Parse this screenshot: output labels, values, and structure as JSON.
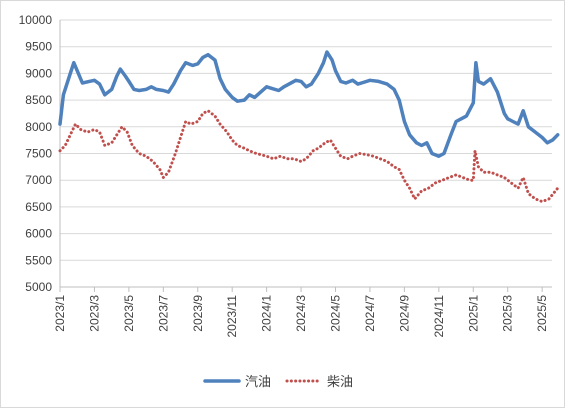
{
  "chart_data": {
    "type": "line",
    "title": "",
    "xlabel": "",
    "ylabel": "",
    "ylim": [
      5000,
      10000
    ],
    "y_ticks": [
      5000,
      5500,
      6000,
      6500,
      7000,
      7500,
      8000,
      8500,
      9000,
      9500,
      10000
    ],
    "x_ticks": [
      "2023/1",
      "2023/3",
      "2023/5",
      "2023/7",
      "2023/9",
      "2023/11",
      "2024/1",
      "2024/3",
      "2024/5",
      "2024/7",
      "2024/9",
      "2024/11",
      "2025/1",
      "2025/3",
      "2025/5"
    ],
    "grid": "horizontal",
    "legend_position": "bottom",
    "series": [
      {
        "name": "汽油",
        "color": "#4f81bd",
        "style": "solid",
        "points": [
          [
            "2023/1",
            8050
          ],
          [
            "2023/1.2",
            8600
          ],
          [
            "2023/1.5",
            8900
          ],
          [
            "2023/1.8",
            9200
          ],
          [
            "2023/2",
            9050
          ],
          [
            "2023/2.3",
            8820
          ],
          [
            "2023/2.7",
            8850
          ],
          [
            "2023/3",
            8870
          ],
          [
            "2023/3.3",
            8800
          ],
          [
            "2023/3.6",
            8600
          ],
          [
            "2023/4",
            8700
          ],
          [
            "2023/4.3",
            8950
          ],
          [
            "2023/4.5",
            9080
          ],
          [
            "2023/4.8",
            8950
          ],
          [
            "2023/5",
            8850
          ],
          [
            "2023/5.3",
            8700
          ],
          [
            "2023/5.6",
            8680
          ],
          [
            "2023/6",
            8700
          ],
          [
            "2023/6.3",
            8750
          ],
          [
            "2023/6.6",
            8700
          ],
          [
            "2023/7",
            8680
          ],
          [
            "2023/7.3",
            8650
          ],
          [
            "2023/7.6",
            8800
          ],
          [
            "2023/8",
            9050
          ],
          [
            "2023/8.3",
            9200
          ],
          [
            "2023/8.7",
            9150
          ],
          [
            "2023/9",
            9180
          ],
          [
            "2023/9.3",
            9300
          ],
          [
            "2023/9.6",
            9350
          ],
          [
            "2023/10",
            9250
          ],
          [
            "2023/10.3",
            8900
          ],
          [
            "2023/10.6",
            8700
          ],
          [
            "2023/11",
            8550
          ],
          [
            "2023/11.3",
            8480
          ],
          [
            "2023/11.7",
            8500
          ],
          [
            "2023/12",
            8600
          ],
          [
            "2023/12.3",
            8550
          ],
          [
            "2024/1",
            8750
          ],
          [
            "2024/1.3",
            8720
          ],
          [
            "2024/1.7",
            8680
          ],
          [
            "2024/2",
            8750
          ],
          [
            "2024/2.3",
            8800
          ],
          [
            "2024/2.7",
            8870
          ],
          [
            "2024/3",
            8850
          ],
          [
            "2024/3.3",
            8750
          ],
          [
            "2024/3.6",
            8800
          ],
          [
            "2024/4",
            9000
          ],
          [
            "2024/4.3",
            9200
          ],
          [
            "2024/4.5",
            9400
          ],
          [
            "2024/4.8",
            9250
          ],
          [
            "2024/5",
            9050
          ],
          [
            "2024/5.3",
            8850
          ],
          [
            "2024/5.6",
            8820
          ],
          [
            "2024/6",
            8870
          ],
          [
            "2024/6.3",
            8800
          ],
          [
            "2024/6.6",
            8830
          ],
          [
            "2024/7",
            8870
          ],
          [
            "2024/7.5",
            8850
          ],
          [
            "2024/8",
            8800
          ],
          [
            "2024/8.4",
            8700
          ],
          [
            "2024/8.7",
            8500
          ],
          [
            "2024/9",
            8100
          ],
          [
            "2024/9.3",
            7850
          ],
          [
            "2024/9.7",
            7700
          ],
          [
            "2024/10",
            7650
          ],
          [
            "2024/10.3",
            7700
          ],
          [
            "2024/10.6",
            7500
          ],
          [
            "2024/11",
            7450
          ],
          [
            "2024/11.3",
            7500
          ],
          [
            "2024/11.7",
            7850
          ],
          [
            "2024/12",
            8100
          ],
          [
            "2024/12.3",
            8150
          ],
          [
            "2024/12.6",
            8200
          ],
          [
            "2025/1",
            8450
          ],
          [
            "2025/1.15",
            9200
          ],
          [
            "2025/1.3",
            8850
          ],
          [
            "2025/1.6",
            8800
          ],
          [
            "2025/2",
            8900
          ],
          [
            "2025/2.4",
            8650
          ],
          [
            "2025/2.8",
            8250
          ],
          [
            "2025/3",
            8150
          ],
          [
            "2025/3.3",
            8100
          ],
          [
            "2025/3.6",
            8050
          ],
          [
            "2025/3.9",
            8300
          ],
          [
            "2025/4.2",
            8000
          ],
          [
            "2025/4.6",
            7900
          ],
          [
            "2025/5",
            7800
          ],
          [
            "2025/5.3",
            7700
          ],
          [
            "2025/5.6",
            7750
          ],
          [
            "2025/5.9",
            7850
          ]
        ]
      },
      {
        "name": "柴油",
        "color": "#c0504d",
        "style": "dotted",
        "points": [
          [
            "2023/1",
            7550
          ],
          [
            "2023/1.3",
            7650
          ],
          [
            "2023/1.6",
            7850
          ],
          [
            "2023/1.9",
            8050
          ],
          [
            "2023/2.2",
            7950
          ],
          [
            "2023/2.6",
            7900
          ],
          [
            "2023/3",
            7950
          ],
          [
            "2023/3.3",
            7900
          ],
          [
            "2023/3.6",
            7650
          ],
          [
            "2023/4",
            7700
          ],
          [
            "2023/4.3",
            7850
          ],
          [
            "2023/4.6",
            8000
          ],
          [
            "2023/4.9",
            7900
          ],
          [
            "2023/5.2",
            7650
          ],
          [
            "2023/5.6",
            7500
          ],
          [
            "2023/6",
            7450
          ],
          [
            "2023/6.4",
            7350
          ],
          [
            "2023/6.8",
            7200
          ],
          [
            "2023/7",
            7050
          ],
          [
            "2023/7.3",
            7150
          ],
          [
            "2023/7.7",
            7500
          ],
          [
            "2023/8",
            7800
          ],
          [
            "2023/8.3",
            8100
          ],
          [
            "2023/8.6",
            8050
          ],
          [
            "2023/9",
            8100
          ],
          [
            "2023/9.3",
            8250
          ],
          [
            "2023/9.6",
            8300
          ],
          [
            "2023/10",
            8200
          ],
          [
            "2023/10.3",
            8050
          ],
          [
            "2023/10.7",
            7900
          ],
          [
            "2023/11",
            7750
          ],
          [
            "2023/11.3",
            7650
          ],
          [
            "2023/11.7",
            7600
          ],
          [
            "2023/12",
            7550
          ],
          [
            "2023/12.4",
            7500
          ],
          [
            "2024/1",
            7450
          ],
          [
            "2024/1.4",
            7400
          ],
          [
            "2024/1.8",
            7450
          ],
          [
            "2024/2.2",
            7400
          ],
          [
            "2024/2.6",
            7400
          ],
          [
            "2024/3",
            7350
          ],
          [
            "2024/3.3",
            7400
          ],
          [
            "2024/3.7",
            7550
          ],
          [
            "2024/4",
            7600
          ],
          [
            "2024/4.4",
            7700
          ],
          [
            "2024/4.7",
            7750
          ],
          [
            "2024/5",
            7600
          ],
          [
            "2024/5.3",
            7450
          ],
          [
            "2024/5.7",
            7400
          ],
          [
            "2024/6",
            7450
          ],
          [
            "2024/6.4",
            7500
          ],
          [
            "2024/6.8",
            7480
          ],
          [
            "2024/7.2",
            7450
          ],
          [
            "2024/7.6",
            7400
          ],
          [
            "2024/8",
            7350
          ],
          [
            "2024/8.4",
            7250
          ],
          [
            "2024/8.7",
            7200
          ],
          [
            "2024/9",
            7000
          ],
          [
            "2024/9.3",
            6850
          ],
          [
            "2024/9.6",
            6650
          ],
          [
            "2024/10",
            6800
          ],
          [
            "2024/10.4",
            6850
          ],
          [
            "2024/10.8",
            6950
          ],
          [
            "2024/11.2",
            7000
          ],
          [
            "2024/11.6",
            7050
          ],
          [
            "2024/12",
            7100
          ],
          [
            "2024/12.4",
            7050
          ],
          [
            "2024/12.8",
            7000
          ],
          [
            "2025/1",
            7000
          ],
          [
            "2025/1.1",
            7550
          ],
          [
            "2025/1.3",
            7250
          ],
          [
            "2025/1.6",
            7150
          ],
          [
            "2025/2",
            7150
          ],
          [
            "2025/2.4",
            7100
          ],
          [
            "2025/2.8",
            7050
          ],
          [
            "2025/3.2",
            6950
          ],
          [
            "2025/3.6",
            6850
          ],
          [
            "2025/3.9",
            7050
          ],
          [
            "2025/4.2",
            6750
          ],
          [
            "2025/4.6",
            6650
          ],
          [
            "2025/5",
            6600
          ],
          [
            "2025/5.4",
            6650
          ],
          [
            "2025/5.9",
            6850
          ]
        ]
      }
    ]
  }
}
